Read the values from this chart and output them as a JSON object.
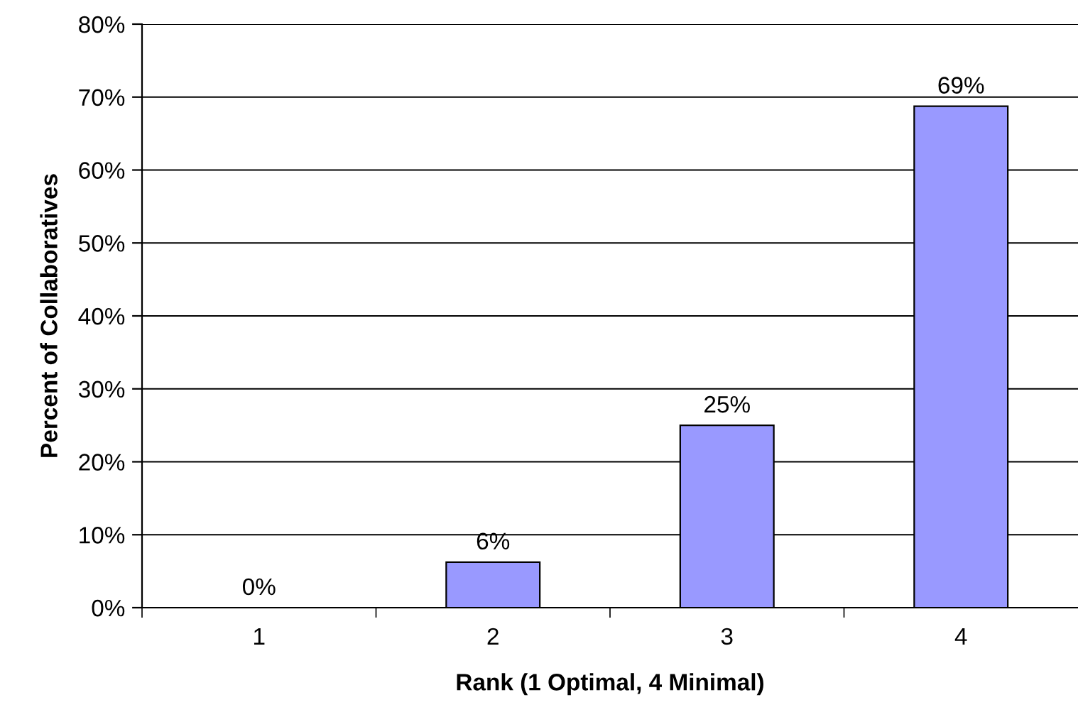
{
  "chart_data": {
    "type": "bar",
    "xlabel": "Rank (1 Optimal, 4 Minimal)",
    "ylabel": "Percent of Collaboratives",
    "categories": [
      "1",
      "2",
      "3",
      "4"
    ],
    "values": [
      0,
      6.25,
      25,
      68.75
    ],
    "value_labels": [
      "0%",
      "6%",
      "25%",
      "69%"
    ],
    "color": "#9999ff",
    "ylim": [
      0,
      80
    ],
    "yticks": [
      {
        "value": 0,
        "label": "0%"
      },
      {
        "value": 10,
        "label": "10%"
      },
      {
        "value": 20,
        "label": "20%"
      },
      {
        "value": 30,
        "label": "30%"
      },
      {
        "value": 40,
        "label": "40%"
      },
      {
        "value": 50,
        "label": "50%"
      },
      {
        "value": 60,
        "label": "60%"
      },
      {
        "value": 70,
        "label": "70%"
      },
      {
        "value": 80,
        "label": "80%"
      }
    ],
    "grid": "y",
    "legend": false
  }
}
